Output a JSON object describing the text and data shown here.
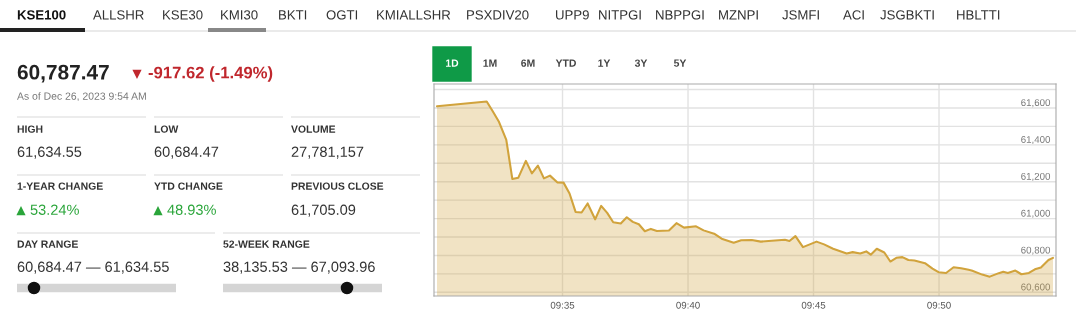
{
  "chart_data": [
    {
      "type": "other",
      "annotations": [
        "KSE100",
        "ALLSHR",
        "KSE30",
        "KMI30",
        "BKTI",
        "OGTI",
        "KMIALLSHR",
        "PSXDIV20",
        "UPP9",
        "NITPGI",
        "NBPPGI",
        "MZNPI",
        "JSMFI",
        "ACI",
        "JSGBKTI",
        "HBLTTI"
      ]
    },
    {
      "type": "other",
      "annotations": [
        "60,787.47",
        "-917.62 (-1.49%)",
        "As of Dec 26, 2023 9:54 AM",
        "HIGH",
        "61,634.55",
        "LOW",
        "60,684.47",
        "VOLUME",
        "27,781,157",
        "1-YEAR CHANGE",
        "53.24%",
        "YTD CHANGE",
        "48.93%",
        "PREVIOUS CLOSE",
        "61,705.09",
        "DAY RANGE",
        "60,684.47 — 61,634.55",
        "52-WEEK RANGE",
        "38,135.53 — 67,093.96"
      ]
    },
    {
      "type": "area",
      "color": "#d1a33c",
      "grid": true,
      "annotations": [
        "1D",
        "1M",
        "6M",
        "YTD",
        "1Y",
        "3Y",
        "5Y"
      ],
      "x": [
        9.5,
        9.533,
        9.537,
        9.541,
        9.546,
        9.55,
        9.554,
        9.559,
        9.563,
        9.567,
        9.571,
        9.575,
        9.58,
        9.584,
        9.588,
        9.592,
        9.596,
        9.6,
        9.605,
        9.609,
        9.613,
        9.617,
        9.622,
        9.626,
        9.63,
        9.634,
        9.638,
        9.642,
        9.646,
        9.654,
        9.659,
        9.664,
        9.672,
        9.677,
        9.684,
        9.689,
        9.697,
        9.702,
        9.709,
        9.715,
        9.731,
        9.734,
        9.738,
        9.743,
        9.752,
        9.757,
        9.763,
        9.772,
        9.776,
        9.781,
        9.785,
        9.788,
        9.792,
        9.797,
        9.801,
        9.805,
        9.809,
        9.813,
        9.817,
        9.824,
        9.829,
        9.833,
        9.838,
        9.843,
        9.848,
        9.853,
        9.855,
        9.862,
        9.867,
        9.873,
        9.876,
        9.879,
        9.884,
        9.888,
        9.893,
        9.897,
        9.901,
        9.906,
        9.909
      ],
      "values": [
        61609,
        61635,
        61582,
        61527,
        61427,
        61215,
        61222,
        61313,
        61245,
        61287,
        61218,
        61233,
        61196,
        61195,
        61136,
        61036,
        61033,
        61082,
        60996,
        61069,
        61031,
        60980,
        60973,
        61007,
        60982,
        60969,
        60931,
        60944,
        60933,
        60935,
        60975,
        60951,
        60958,
        60936,
        60918,
        60891,
        60869,
        60882,
        60884,
        60875,
        60885,
        60878,
        60905,
        60845,
        60875,
        60860,
        60836,
        60811,
        60818,
        60811,
        60822,
        60804,
        60836,
        60816,
        60767,
        60787,
        60791,
        60775,
        60773,
        60758,
        60729,
        60709,
        60705,
        60736,
        60731,
        60722,
        60718,
        60696,
        60685,
        60704,
        60711,
        60705,
        60718,
        60698,
        60705,
        60725,
        60735,
        60775,
        60787
      ],
      "xlim": [
        9.498,
        9.911
      ],
      "ylim": [
        60580,
        61730
      ],
      "xticks": [
        {
          "value": 9.58333,
          "label": "09:35"
        },
        {
          "value": 9.66667,
          "label": "09:40"
        },
        {
          "value": 9.75,
          "label": "09:45"
        },
        {
          "value": 9.83333,
          "label": "09:50"
        }
      ],
      "yticks": [
        {
          "value": 60600,
          "label": "60,600"
        },
        {
          "value": 60700,
          "label": null
        },
        {
          "value": 60800,
          "label": "60,800"
        },
        {
          "value": 60900,
          "label": null
        },
        {
          "value": 61000,
          "label": "61,000"
        },
        {
          "value": 61100,
          "label": null
        },
        {
          "value": 61200,
          "label": "61,200"
        },
        {
          "value": 61300,
          "label": null
        },
        {
          "value": 61400,
          "label": "61,400"
        },
        {
          "value": 61500,
          "label": null
        },
        {
          "value": 61600,
          "label": "61,600"
        },
        {
          "value": 61700,
          "label": null
        }
      ]
    }
  ]
}
